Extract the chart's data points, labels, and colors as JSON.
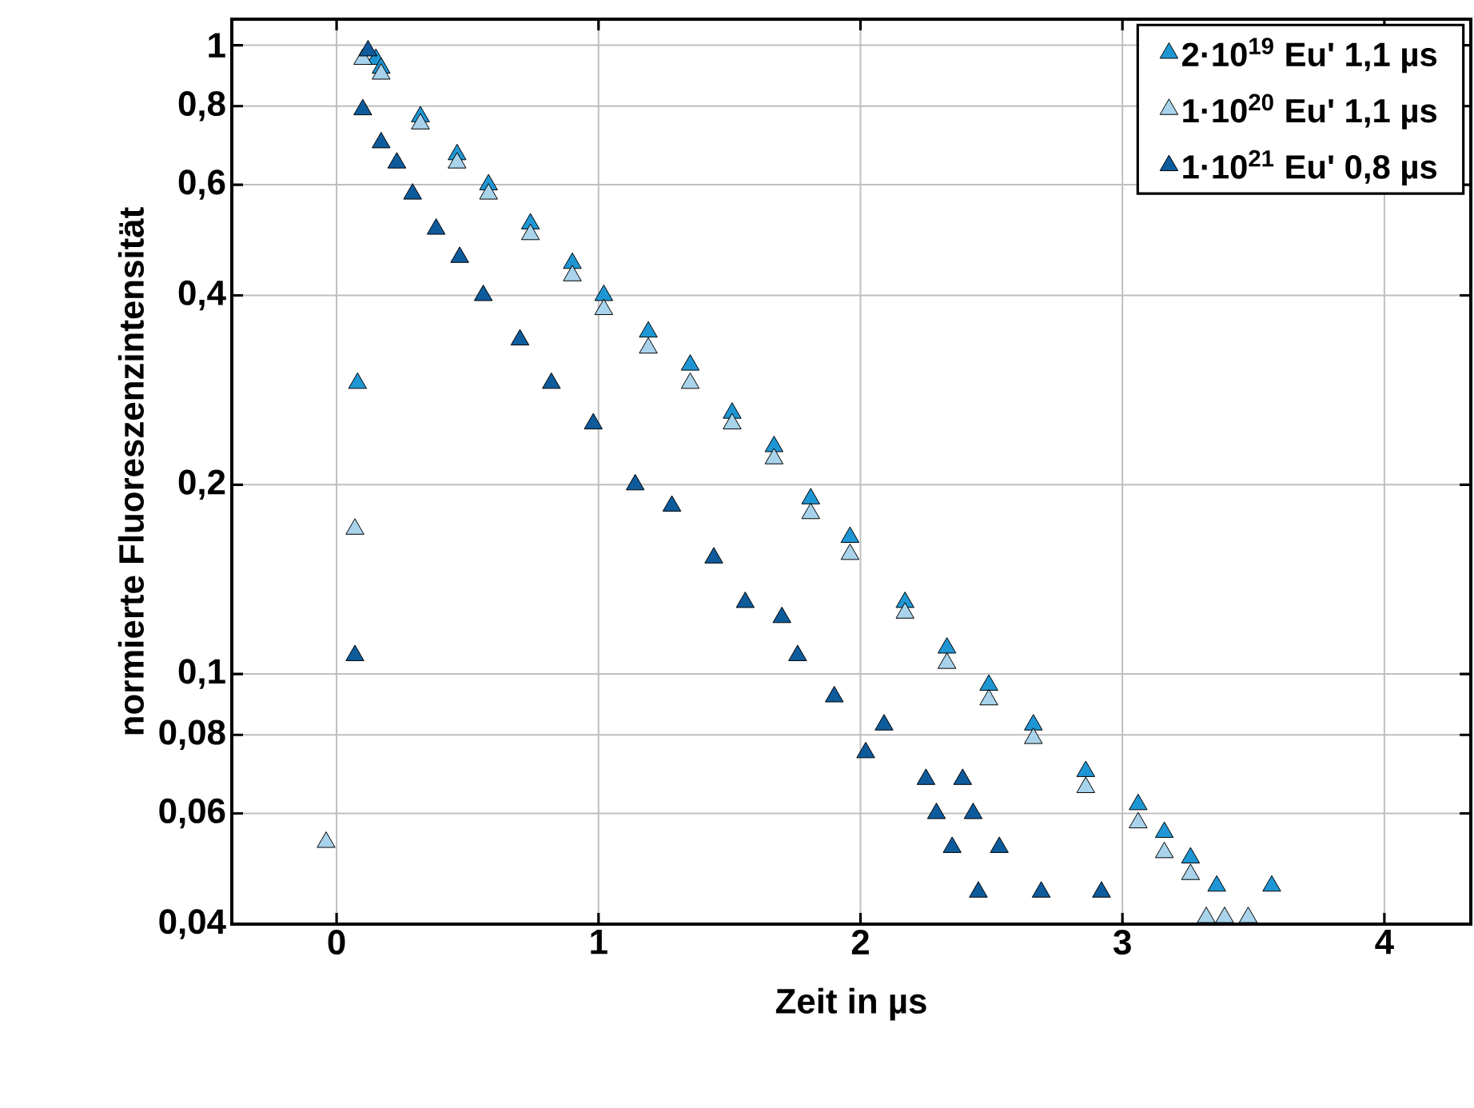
{
  "chart_data": {
    "type": "scatter",
    "xlabel": "Zeit in µs",
    "ylabel": "normierte Fluoreszenzintensität",
    "log": "y",
    "grid": true,
    "legend": "top right",
    "marker": "triangle",
    "xlim": [
      -0.4,
      4.33
    ],
    "ylim": [
      0.04,
      1.1
    ],
    "xticks": [
      0,
      1,
      2,
      3,
      4
    ],
    "yticks": [
      {
        "value": 0.04,
        "label": "0,04"
      },
      {
        "value": 0.06,
        "label": "0,06"
      },
      {
        "value": 0.08,
        "label": "0,08"
      },
      {
        "value": 0.1,
        "label": "0,1"
      },
      {
        "value": 0.2,
        "label": "0,2"
      },
      {
        "value": 0.4,
        "label": "0,4"
      },
      {
        "value": 0.6,
        "label": "0,6"
      },
      {
        "value": 0.8,
        "label": "0,8"
      },
      {
        "value": 1,
        "label": "1"
      }
    ],
    "series": [
      {
        "name": "2·10$^{19}$ Eu'  1,1 µs",
        "color": "#1f96d4",
        "x": [
          0.08,
          0.15,
          0.17,
          0.32,
          0.46,
          0.58,
          0.74,
          0.9,
          1.02,
          1.19,
          1.35,
          1.51,
          1.67,
          1.81,
          1.96,
          2.17,
          2.33,
          2.49,
          2.66,
          2.86,
          3.06,
          3.16,
          3.26,
          3.36,
          3.57
        ],
        "values": [
          0.29,
          0.95,
          0.92,
          0.77,
          0.67,
          0.6,
          0.52,
          0.45,
          0.4,
          0.35,
          0.31,
          0.26,
          0.23,
          0.19,
          0.165,
          0.13,
          0.11,
          0.096,
          0.083,
          0.07,
          0.062,
          0.056,
          0.051,
          0.046,
          0.046
        ]
      },
      {
        "name": "1·10$^{20}$ Eu'  1,1 µs",
        "color": "#a8d3eb",
        "x": [
          -0.04,
          0.07,
          0.1,
          0.17,
          0.32,
          0.46,
          0.58,
          0.74,
          0.9,
          1.02,
          1.19,
          1.35,
          1.51,
          1.67,
          1.81,
          1.96,
          2.17,
          2.33,
          2.49,
          2.66,
          2.86,
          3.06,
          3.16,
          3.26,
          3.32,
          3.39,
          3.48
        ],
        "values": [
          0.054,
          0.17,
          0.95,
          0.9,
          0.75,
          0.65,
          0.58,
          0.5,
          0.43,
          0.38,
          0.33,
          0.29,
          0.25,
          0.22,
          0.18,
          0.155,
          0.125,
          0.104,
          0.091,
          0.079,
          0.066,
          0.058,
          0.052,
          0.048,
          0.041,
          0.041,
          0.041
        ]
      },
      {
        "name": "1·10$^{21}$ Eu'  0,8 µs",
        "color": "#0e5b9c",
        "x": [
          0.07,
          0.1,
          0.12,
          0.17,
          0.23,
          0.29,
          0.38,
          0.47,
          0.56,
          0.7,
          0.82,
          0.98,
          1.14,
          1.28,
          1.44,
          1.56,
          1.7,
          1.76,
          1.9,
          2.02,
          2.09,
          2.25,
          2.29,
          2.35,
          2.39,
          2.43,
          2.45,
          2.53,
          2.69,
          2.92
        ],
        "values": [
          0.107,
          0.79,
          0.98,
          0.7,
          0.65,
          0.58,
          0.51,
          0.46,
          0.4,
          0.34,
          0.29,
          0.25,
          0.2,
          0.185,
          0.153,
          0.13,
          0.123,
          0.107,
          0.092,
          0.075,
          0.083,
          0.068,
          0.06,
          0.053,
          0.068,
          0.06,
          0.045,
          0.053,
          0.045,
          0.045
        ]
      }
    ]
  }
}
